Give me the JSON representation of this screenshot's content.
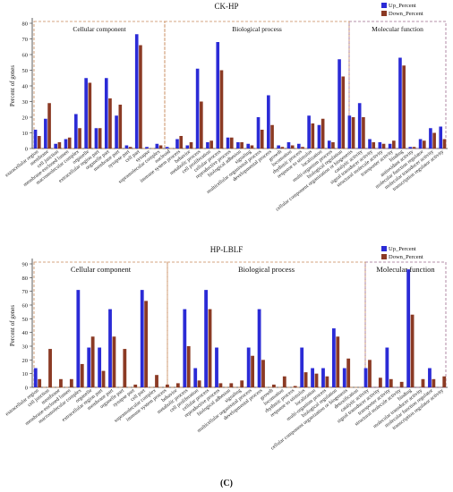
{
  "figure_label": "(C)",
  "colors": {
    "up": "#2b2bd6",
    "down": "#8b3a24",
    "box": "#c8895a",
    "box2": "#9d6b8f",
    "axis": "#333333"
  },
  "chart_data": [
    {
      "type": "bar",
      "title": "CK-HP",
      "ylabel": "Percent of genes",
      "ylim": [
        0,
        80
      ],
      "yticks": [
        0,
        10,
        20,
        30,
        40,
        50,
        60,
        70,
        80
      ],
      "grid": false,
      "legend_position": "top-right",
      "sections": [
        {
          "label": "Cellular component",
          "from": 0,
          "to": 13
        },
        {
          "label": "Biological process",
          "from": 14,
          "to": 31
        },
        {
          "label": "Molecular function",
          "from": 32,
          "to": 40
        }
      ],
      "categories": [
        "extracellular region",
        "membrane",
        "cell junction",
        "membrane-enclosed lumen",
        "macromolecular complex",
        "organelle",
        "extracellular region part",
        "organelle part",
        "membrane part",
        "synapse part",
        "cell part",
        "synapse",
        "supramolecular complex",
        "nucleoid",
        "immune system process",
        "behavior",
        "metabolic process",
        "cell proliferation",
        "cellular process",
        "reproductive process",
        "biological adhesion",
        "signaling",
        "multicellular organismal process",
        "developmental process",
        "growth",
        "locomotion",
        "rhythmic process",
        "response to stimulus",
        "localization",
        "multi-organism process",
        "biological regulation",
        "cellular component organization or biogenesis",
        "catalytic activity",
        "signal transducer activity",
        "structural molecule activity",
        "transporter activity",
        "binding",
        "antioxidant activity",
        "molecular function regulator",
        "molecular transducer activity",
        "transcription regulator activity"
      ],
      "series": [
        {
          "name": "Up_Percent",
          "values": [
            12,
            19,
            3,
            6,
            22,
            45,
            13,
            45,
            21,
            2,
            73,
            1,
            3,
            1,
            6,
            2,
            51,
            4,
            68,
            7,
            4,
            3,
            20,
            34,
            2,
            4,
            3,
            21,
            15,
            5,
            57,
            21,
            29,
            6,
            4,
            3,
            58,
            1,
            6,
            13,
            14
          ]
        },
        {
          "name": "Down_Percent",
          "values": [
            8,
            29,
            4,
            7,
            13,
            42,
            13,
            32,
            28,
            1,
            66,
            0,
            2,
            0,
            8,
            4,
            30,
            5,
            50,
            7,
            4,
            2,
            12,
            15,
            1,
            2,
            1,
            16,
            19,
            4,
            46,
            20,
            20,
            4,
            3,
            5,
            53,
            1,
            5,
            10,
            6
          ]
        }
      ]
    },
    {
      "type": "bar",
      "title": "HP-LBLF",
      "ylabel": "Percent of genes",
      "ylim": [
        0,
        90
      ],
      "yticks": [
        0,
        10,
        20,
        30,
        40,
        50,
        60,
        70,
        80,
        90
      ],
      "grid": false,
      "legend_position": "top-right",
      "sections": [
        {
          "label": "Cellular component",
          "from": 0,
          "to": 11
        },
        {
          "label": "Biological process",
          "from": 12,
          "to": 30
        },
        {
          "label": "Molecular function",
          "from": 31,
          "to": 38
        }
      ],
      "categories": [
        "extracellular region",
        "cell junction",
        "membrane",
        "membrane-enclosed lumen",
        "macromolecular complex",
        "organelle",
        "extracellular region part",
        "membrane part",
        "organelle part",
        "synapse part",
        "cell part",
        "supramolecular complex",
        "immune system process",
        "behavior",
        "metabolic process",
        "cell proliferation",
        "cellular process",
        "reproductive process",
        "biological adhesion",
        "signaling",
        "multicellular organismal process",
        "developmental process",
        "growth",
        "locomotion",
        "rhythmic process",
        "response to stimulus",
        "localization",
        "multi-organism process",
        "biological regulation",
        "cellular component organization or biogenesis",
        "detoxification",
        "catalytic activity",
        "signal transducer activity",
        "transporter activity",
        "structural molecule activity",
        "binding",
        "molecular transducer activity",
        "molecular function regulator",
        "transcription regulator activity"
      ],
      "series": [
        {
          "name": "Up_Percent",
          "values": [
            14,
            0,
            0,
            0,
            71,
            29,
            29,
            57,
            0,
            0,
            71,
            0,
            0,
            0,
            57,
            14,
            71,
            29,
            0,
            0,
            29,
            57,
            0,
            0,
            0,
            29,
            14,
            14,
            43,
            14,
            0,
            14,
            0,
            29,
            0,
            86,
            0,
            14,
            0
          ]
        },
        {
          "name": "Down_Percent",
          "values": [
            6,
            28,
            6,
            6,
            17,
            37,
            12,
            37,
            28,
            2,
            63,
            9,
            2,
            3,
            30,
            5,
            57,
            3,
            3,
            5,
            23,
            20,
            2,
            8,
            1,
            11,
            10,
            8,
            37,
            21,
            0,
            20,
            7,
            6,
            4,
            53,
            6,
            6,
            8
          ]
        }
      ]
    }
  ]
}
